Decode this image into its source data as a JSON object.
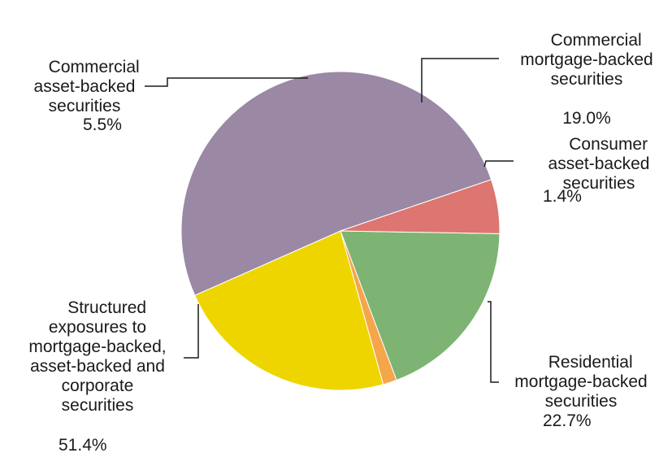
{
  "chart_data": {
    "type": "pie",
    "title": "",
    "slices": [
      {
        "label": "Commercial mortgage-backed securities",
        "text": "Commercial\nmortgage-backed\nsecurities",
        "value": 19.0,
        "display": "19.0%",
        "color": "#7db474"
      },
      {
        "label": "Consumer asset-backed securities",
        "text": "Consumer\nasset-backed\nsecurities",
        "value": 1.4,
        "display": "1.4%",
        "color": "#f5a54a"
      },
      {
        "label": "Residential mortgage-backed securities",
        "text": "Residential\nmortgage-backed\nsecurities",
        "value": 22.7,
        "display": "22.7%",
        "color": "#eed500"
      },
      {
        "label": "Structured exposures to mortgage-backed, asset-backed and corporate securities",
        "text": "Structured\nexposures to\nmortgage-backed,\nasset-backed and\ncorporate\nsecurities",
        "value": 51.4,
        "display": "51.4%",
        "color": "#9a88a5"
      },
      {
        "label": "Commercial asset-backed securities",
        "text": "Commercial\nasset-backed\nsecurities",
        "value": 5.5,
        "display": "5.5%",
        "color": "#dd7670"
      }
    ]
  }
}
